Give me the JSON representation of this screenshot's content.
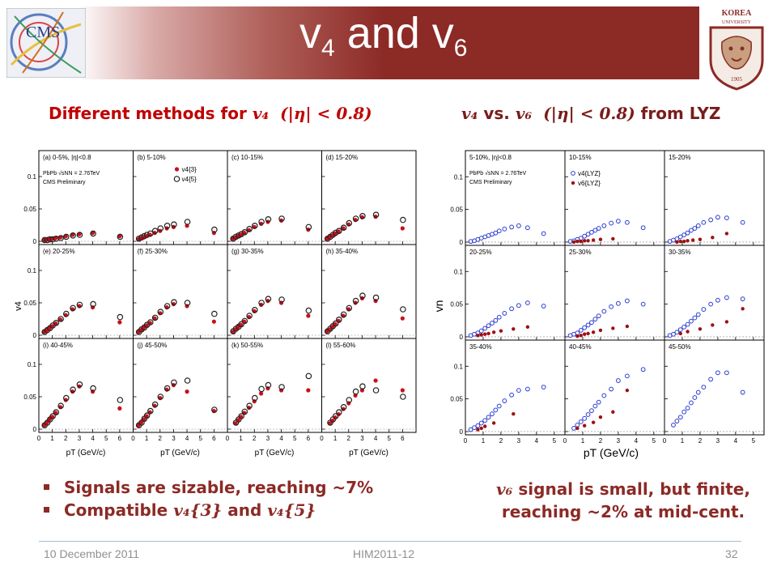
{
  "slide": {
    "title_main": "v",
    "title_sub1": "4",
    "title_and": " and v",
    "title_sub2": "6",
    "left_heading": "Different methods for",
    "left_heading_var": "v₄",
    "left_heading_cond": "(|η| < 0.8)",
    "right_heading_var1": "v₄",
    "right_heading_vs": "vs.",
    "right_heading_var2": "v₆",
    "right_heading_cond": "(|η| < 0.8)",
    "right_heading_tail": "from LYZ",
    "bullet1": "Signals are sizable, reaching ~7%",
    "bullet2_a": "Compatible",
    "bullet2_v1": "v₄{3}",
    "bullet2_and": "and",
    "bullet2_v2": "v₄{5}",
    "right_text_var": "v₆",
    "right_text_line1": "signal is small, but finite,",
    "right_text_line2": "reaching ~2% at mid-cent.",
    "footer_date": "10 December 2011",
    "footer_conf": "HIM2011-12",
    "footer_page": "32",
    "logo_left_text": "CMS",
    "logo_right_text": "KOREA UNIVERSITY",
    "logo_right_year": "1905",
    "colors": {
      "bar": "#8c2a26",
      "heading_left": "#c00000",
      "text": "#8c2a26",
      "v4_3": "#c8101a",
      "v4_5": "#222222",
      "v4_lyz": "#2a3cd0",
      "v6_lyz": "#a01010"
    }
  },
  "chart_data": [
    {
      "type": "scatter",
      "title": "",
      "ylabel": "v4",
      "xlabel": "pT (GeV/c)",
      "ylim": [
        -0.005,
        0.14
      ],
      "xlim": [
        0,
        7
      ],
      "yticks": [
        0,
        0.05,
        0.1
      ],
      "ytick_labels": [
        "0",
        "0.05",
        "0.1"
      ],
      "xticks": [
        0,
        1,
        2,
        3,
        4,
        5,
        6
      ],
      "xtick_labels": [
        "0",
        "1",
        "2",
        "3",
        "4",
        "5",
        "6"
      ],
      "legend_text": [
        "PbPb √sNN = 2.76TeV",
        "CMS Preliminary",
        "v4{3}",
        "v4{5}"
      ],
      "eta_label": "(a) 0-5%, |η|<0.8",
      "panels": [
        {
          "label": "(a) 0-5%, |η|<0.8",
          "x": [
            0.4,
            0.6,
            0.8,
            1.0,
            1.25,
            1.6,
            2.0,
            2.5,
            3.0,
            4.0,
            6.0
          ],
          "v4_3": [
            0.002,
            0.003,
            0.003,
            0.004,
            0.005,
            0.006,
            0.008,
            0.01,
            0.011,
            0.013,
            0.008
          ],
          "v4_5": [
            0.002,
            0.002,
            0.003,
            0.003,
            0.004,
            0.005,
            0.007,
            0.009,
            0.01,
            0.012,
            0.007
          ]
        },
        {
          "label": "(b) 5-10%",
          "x": [
            0.4,
            0.6,
            0.8,
            1.0,
            1.25,
            1.6,
            2.0,
            2.5,
            3.0,
            4.0,
            6.0
          ],
          "v4_3": [
            0.003,
            0.005,
            0.006,
            0.008,
            0.01,
            0.013,
            0.016,
            0.02,
            0.022,
            0.024,
            0.013
          ],
          "v4_5": [
            0.004,
            0.006,
            0.008,
            0.01,
            0.012,
            0.016,
            0.02,
            0.024,
            0.026,
            0.03,
            0.018
          ]
        },
        {
          "label": "(c) 10-15%",
          "x": [
            0.4,
            0.6,
            0.8,
            1.0,
            1.25,
            1.6,
            2.0,
            2.5,
            3.0,
            4.0,
            6.0
          ],
          "v4_3": [
            0.004,
            0.006,
            0.008,
            0.01,
            0.013,
            0.017,
            0.022,
            0.027,
            0.03,
            0.032,
            0.018
          ],
          "v4_5": [
            0.004,
            0.007,
            0.009,
            0.011,
            0.014,
            0.019,
            0.024,
            0.03,
            0.034,
            0.035,
            0.022
          ]
        },
        {
          "label": "(d) 15-20%",
          "x": [
            0.4,
            0.6,
            0.8,
            1.0,
            1.25,
            1.6,
            2.0,
            2.5,
            3.0,
            4.0,
            6.0
          ],
          "v4_3": [
            0.004,
            0.007,
            0.009,
            0.012,
            0.015,
            0.02,
            0.026,
            0.033,
            0.037,
            0.038,
            0.02
          ],
          "v4_5": [
            0.004,
            0.007,
            0.01,
            0.013,
            0.016,
            0.021,
            0.028,
            0.035,
            0.039,
            0.041,
            0.033
          ]
        },
        {
          "label": "(e) 20-25%",
          "x": [
            0.4,
            0.6,
            0.8,
            1.0,
            1.25,
            1.6,
            2.0,
            2.5,
            3.0,
            4.0,
            6.0
          ],
          "v4_3": [
            0.005,
            0.008,
            0.011,
            0.014,
            0.018,
            0.024,
            0.031,
            0.04,
            0.045,
            0.043,
            0.02
          ],
          "v4_5": [
            0.005,
            0.008,
            0.011,
            0.015,
            0.019,
            0.025,
            0.033,
            0.042,
            0.047,
            0.048,
            0.028
          ]
        },
        {
          "label": "(f) 25-30%",
          "x": [
            0.4,
            0.6,
            0.8,
            1.0,
            1.25,
            1.6,
            2.0,
            2.5,
            3.0,
            4.0,
            6.0
          ],
          "v4_3": [
            0.005,
            0.008,
            0.012,
            0.015,
            0.019,
            0.026,
            0.034,
            0.043,
            0.048,
            0.045,
            0.021
          ],
          "v4_5": [
            0.005,
            0.009,
            0.012,
            0.016,
            0.02,
            0.027,
            0.036,
            0.045,
            0.051,
            0.05,
            0.033
          ]
        },
        {
          "label": "(g) 30-35%",
          "x": [
            0.4,
            0.6,
            0.8,
            1.0,
            1.25,
            1.6,
            2.0,
            2.5,
            3.0,
            4.0,
            6.0
          ],
          "v4_3": [
            0.005,
            0.009,
            0.013,
            0.016,
            0.021,
            0.028,
            0.037,
            0.047,
            0.053,
            0.05,
            0.03
          ],
          "v4_5": [
            0.006,
            0.01,
            0.013,
            0.017,
            0.022,
            0.03,
            0.039,
            0.05,
            0.056,
            0.055,
            0.038
          ]
        },
        {
          "label": "(h) 35-40%",
          "x": [
            0.4,
            0.6,
            0.8,
            1.0,
            1.25,
            1.6,
            2.0,
            2.5,
            3.0,
            4.0,
            6.0
          ],
          "v4_3": [
            0.006,
            0.009,
            0.013,
            0.017,
            0.022,
            0.03,
            0.04,
            0.05,
            0.057,
            0.053,
            0.026
          ],
          "v4_5": [
            0.006,
            0.01,
            0.014,
            0.018,
            0.024,
            0.032,
            0.042,
            0.053,
            0.061,
            0.058,
            0.04
          ]
        },
        {
          "label": "(i) 40-45%",
          "x": [
            0.4,
            0.6,
            0.8,
            1.0,
            1.25,
            1.6,
            2.0,
            2.5,
            3.0,
            4.0,
            6.0
          ],
          "v4_3": [
            0.006,
            0.01,
            0.015,
            0.019,
            0.025,
            0.034,
            0.045,
            0.058,
            0.066,
            0.058,
            0.032
          ],
          "v4_5": [
            0.006,
            0.01,
            0.015,
            0.02,
            0.026,
            0.036,
            0.048,
            0.061,
            0.069,
            0.063,
            0.045
          ]
        },
        {
          "label": "(j) 45-50%",
          "x": [
            0.4,
            0.6,
            0.8,
            1.0,
            1.25,
            1.6,
            2.0,
            2.5,
            3.0,
            4.0,
            6.0
          ],
          "v4_3": [
            0.006,
            0.01,
            0.015,
            0.02,
            0.026,
            0.036,
            0.048,
            0.061,
            0.068,
            0.058,
            0.028
          ],
          "v4_5": [
            0.006,
            0.01,
            0.016,
            0.021,
            0.028,
            0.038,
            0.05,
            0.063,
            0.072,
            0.075,
            0.03
          ]
        },
        {
          "label": "(k) 50-55%",
          "x": [
            0.6,
            0.8,
            1.0,
            1.25,
            1.6,
            2.0,
            2.5,
            3.0,
            4.0,
            6.0
          ],
          "v4_3": [
            0.009,
            0.014,
            0.019,
            0.025,
            0.033,
            0.043,
            0.055,
            0.063,
            0.06,
            0.06
          ],
          "v4_5": [
            0.01,
            0.015,
            0.02,
            0.027,
            0.036,
            0.048,
            0.062,
            0.068,
            0.065,
            0.082
          ]
        },
        {
          "label": "(l) 55-60%",
          "x": [
            0.6,
            0.8,
            1.0,
            1.25,
            1.6,
            2.0,
            2.5,
            3.0,
            4.0,
            6.0
          ],
          "v4_3": [
            0.009,
            0.013,
            0.018,
            0.023,
            0.031,
            0.04,
            0.052,
            0.06,
            0.075,
            0.06
          ],
          "v4_5": [
            0.01,
            0.015,
            0.02,
            0.026,
            0.034,
            0.045,
            0.058,
            0.066,
            0.06,
            0.05
          ]
        }
      ]
    },
    {
      "type": "scatter",
      "title": "",
      "ylabel": "vn",
      "xlabel": "pT (GeV/c)",
      "ylim": [
        -0.005,
        0.14
      ],
      "xlim": [
        0,
        5.6
      ],
      "yticks": [
        0,
        0.05,
        0.1
      ],
      "ytick_labels": [
        "0",
        "0.05",
        "0.1"
      ],
      "xticks": [
        0,
        1,
        2,
        3,
        4,
        5
      ],
      "xtick_labels": [
        "0",
        "1",
        "2",
        "3",
        "4",
        "5"
      ],
      "legend_text": [
        "PbPb √sNN = 2.76TeV",
        "CMS Preliminary",
        "v4{LYZ}",
        "v6{LYZ}"
      ],
      "eta_label": "5-10%, |η|<0.8",
      "panels": [
        {
          "label": "5-10%, |η|<0.8",
          "v4_x": [
            0.3,
            0.5,
            0.7,
            0.9,
            1.1,
            1.3,
            1.5,
            1.7,
            1.9,
            2.2,
            2.6,
            3.0,
            3.5,
            4.4
          ],
          "v4": [
            0.001,
            0.002,
            0.004,
            0.006,
            0.008,
            0.01,
            0.012,
            0.014,
            0.017,
            0.02,
            0.023,
            0.025,
            0.022,
            0.013
          ],
          "v6_x": [],
          "v6": []
        },
        {
          "label": "10-15%",
          "v4_x": [
            0.3,
            0.5,
            0.7,
            0.9,
            1.1,
            1.3,
            1.5,
            1.7,
            1.9,
            2.2,
            2.6,
            3.0,
            3.5,
            4.4
          ],
          "v4": [
            0.001,
            0.002,
            0.004,
            0.006,
            0.009,
            0.012,
            0.015,
            0.018,
            0.021,
            0.025,
            0.029,
            0.032,
            0.03,
            0.022
          ],
          "v6_x": [
            0.5,
            0.7,
            0.9,
            1.1,
            1.3,
            1.6,
            2.0,
            2.7
          ],
          "v6": [
            0.0,
            0.001,
            0.001,
            0.002,
            0.002,
            0.003,
            0.004,
            0.005
          ]
        },
        {
          "label": "15-20%",
          "v4_x": [
            0.3,
            0.5,
            0.7,
            0.9,
            1.1,
            1.3,
            1.5,
            1.7,
            1.9,
            2.2,
            2.6,
            3.0,
            3.5,
            4.4
          ],
          "v4": [
            0.001,
            0.003,
            0.005,
            0.008,
            0.011,
            0.014,
            0.018,
            0.021,
            0.025,
            0.03,
            0.034,
            0.038,
            0.037,
            0.03
          ],
          "v6_x": [
            0.7,
            0.9,
            1.1,
            1.3,
            1.6,
            2.0,
            2.7,
            3.5
          ],
          "v6": [
            0.0,
            0.001,
            0.001,
            0.002,
            0.003,
            0.004,
            0.007,
            0.013
          ]
        },
        {
          "label": "20-25%",
          "v4_x": [
            0.3,
            0.5,
            0.7,
            0.9,
            1.1,
            1.3,
            1.5,
            1.7,
            1.9,
            2.2,
            2.6,
            3.0,
            3.5,
            4.4
          ],
          "v4": [
            0.002,
            0.004,
            0.006,
            0.009,
            0.013,
            0.017,
            0.021,
            0.025,
            0.03,
            0.036,
            0.043,
            0.048,
            0.052,
            0.047
          ],
          "v6_x": [
            0.7,
            0.9,
            1.1,
            1.3,
            1.6,
            2.0,
            2.7,
            3.5
          ],
          "v6": [
            0.002,
            0.003,
            0.004,
            0.005,
            0.007,
            0.009,
            0.012,
            0.015
          ]
        },
        {
          "label": "25-30%",
          "v4_x": [
            0.3,
            0.5,
            0.7,
            0.9,
            1.1,
            1.3,
            1.5,
            1.7,
            1.9,
            2.2,
            2.6,
            3.0,
            3.5,
            4.4
          ],
          "v4": [
            0.002,
            0.004,
            0.006,
            0.01,
            0.014,
            0.018,
            0.022,
            0.027,
            0.032,
            0.039,
            0.046,
            0.051,
            0.055,
            0.05
          ],
          "v6_x": [
            0.7,
            0.9,
            1.1,
            1.3,
            1.6,
            2.0,
            2.7,
            3.5
          ],
          "v6": [
            0.001,
            0.002,
            0.004,
            0.005,
            0.007,
            0.01,
            0.013,
            0.016
          ]
        },
        {
          "label": "30-35%",
          "v4_x": [
            0.3,
            0.5,
            0.7,
            0.9,
            1.1,
            1.3,
            1.5,
            1.7,
            1.9,
            2.2,
            2.6,
            3.0,
            3.5,
            4.4
          ],
          "v4": [
            0.002,
            0.004,
            0.007,
            0.011,
            0.015,
            0.019,
            0.024,
            0.029,
            0.034,
            0.042,
            0.05,
            0.056,
            0.06,
            0.058
          ],
          "v6_x": [
            0.9,
            1.3,
            2.0,
            2.7,
            3.5,
            4.4
          ],
          "v6": [
            0.005,
            0.008,
            0.012,
            0.018,
            0.023,
            0.043
          ]
        },
        {
          "label": "35-40%",
          "v4_x": [
            0.3,
            0.5,
            0.7,
            0.9,
            1.1,
            1.3,
            1.5,
            1.7,
            1.9,
            2.2,
            2.6,
            3.0,
            3.5,
            4.4
          ],
          "v4": [
            0.003,
            0.006,
            0.009,
            0.013,
            0.017,
            0.022,
            0.027,
            0.033,
            0.039,
            0.047,
            0.056,
            0.063,
            0.065,
            0.068
          ],
          "v6_x": [
            0.7,
            0.9,
            1.1,
            1.6,
            2.7
          ],
          "v6": [
            0.003,
            0.005,
            0.008,
            0.013,
            0.027
          ]
        },
        {
          "label": "40-45%",
          "v4_x": [
            0.5,
            0.7,
            0.9,
            1.1,
            1.3,
            1.5,
            1.7,
            1.9,
            2.2,
            2.6,
            3.0,
            3.5,
            4.4
          ],
          "v4": [
            0.005,
            0.01,
            0.015,
            0.02,
            0.026,
            0.032,
            0.039,
            0.045,
            0.055,
            0.065,
            0.078,
            0.085,
            0.095
          ],
          "v6_x": [
            0.7,
            1.1,
            1.6,
            2.0,
            2.7,
            3.5
          ],
          "v6": [
            0.005,
            0.009,
            0.014,
            0.022,
            0.03,
            0.063
          ]
        },
        {
          "label": "45-50%",
          "v4_x": [
            0.5,
            0.7,
            0.9,
            1.1,
            1.3,
            1.5,
            1.7,
            1.9,
            2.2,
            2.6,
            3.0,
            3.5,
            4.4
          ],
          "v4": [
            0.01,
            0.016,
            0.022,
            0.03,
            0.036,
            0.044,
            0.052,
            0.06,
            0.068,
            0.08,
            0.09,
            0.09,
            0.06
          ],
          "v6_x": [],
          "v6": []
        }
      ]
    }
  ]
}
